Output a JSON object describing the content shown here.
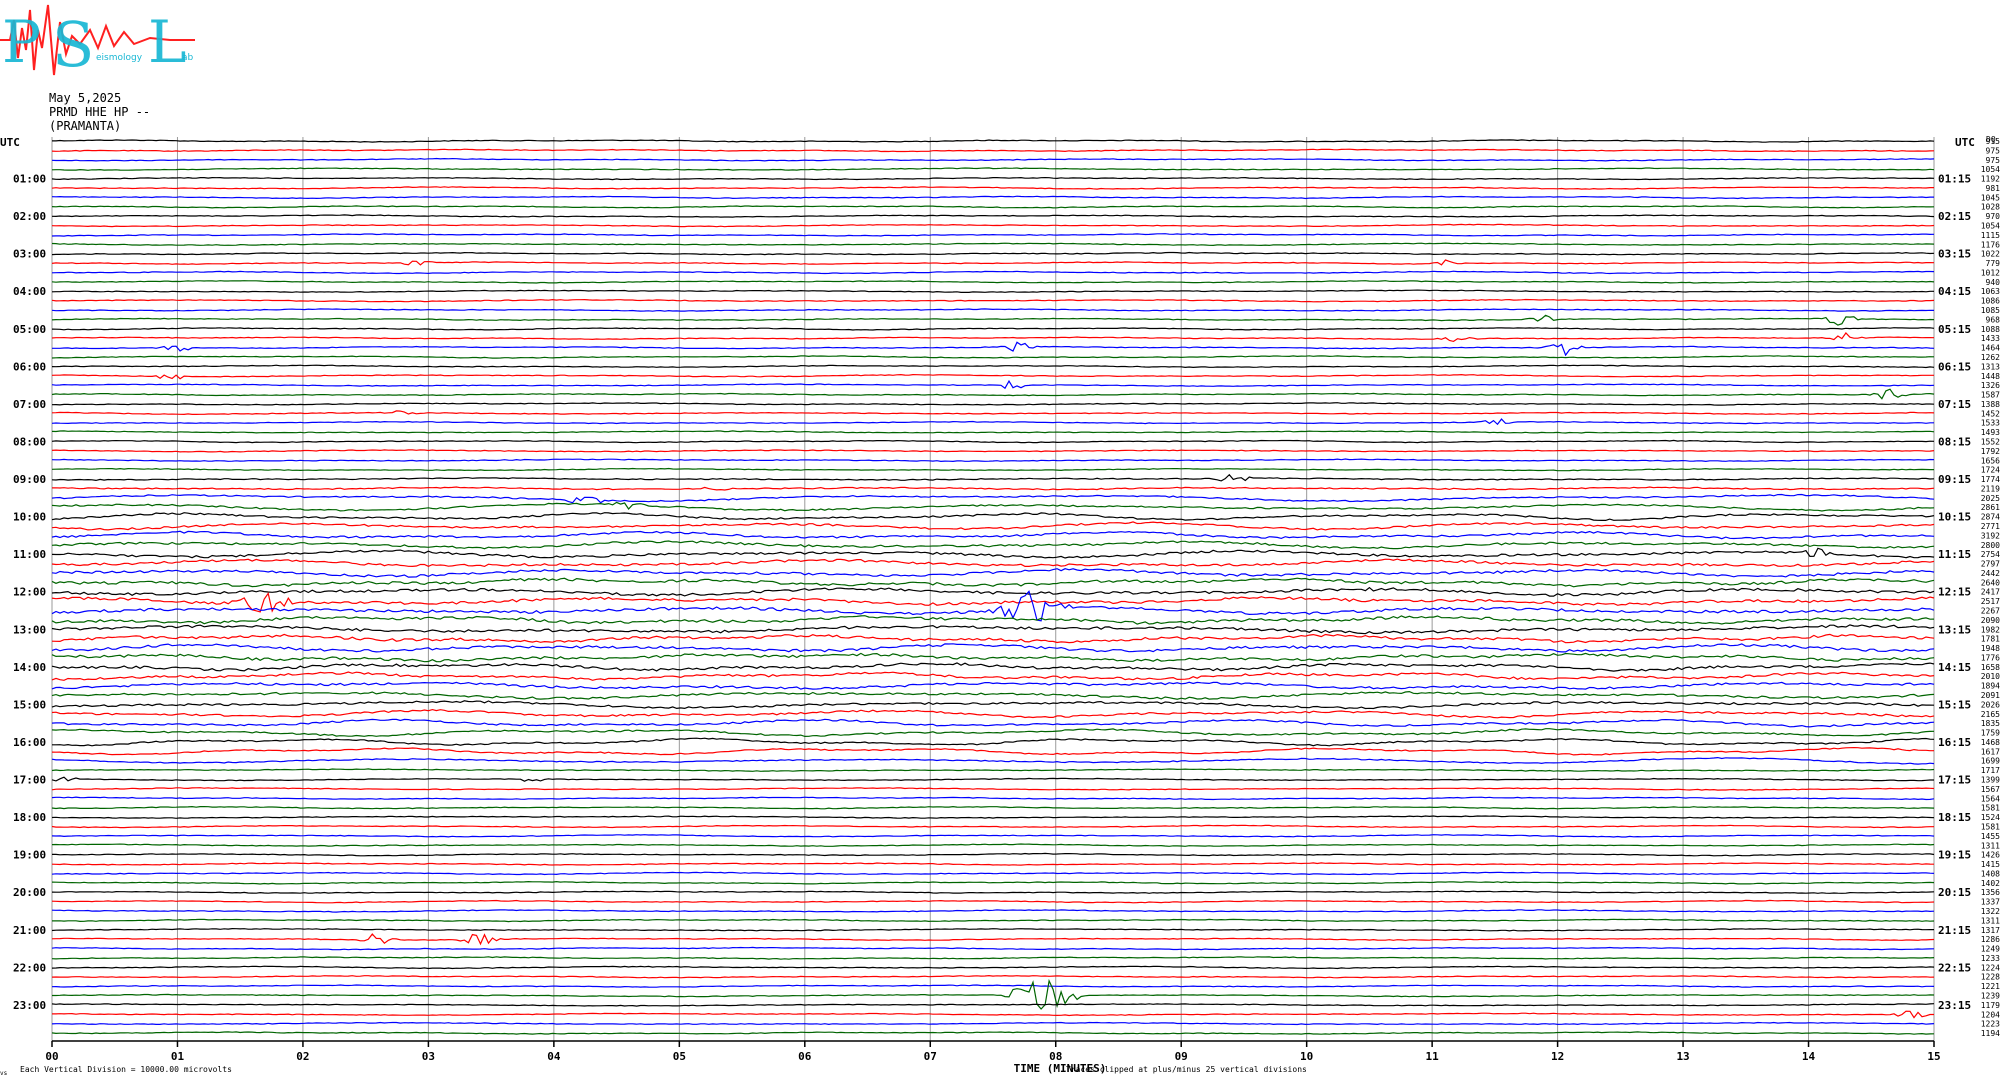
{
  "logo": {
    "letters": [
      "P",
      "S",
      "L"
    ],
    "small_words": [
      "eismology",
      "ab"
    ],
    "colors": {
      "primary": "#19b7d4",
      "accent": "#ff2020"
    }
  },
  "header": {
    "date": "May 5,2025",
    "station": "PRMD HHE HP --",
    "site": "(PRAMANTA)"
  },
  "chart_data": {
    "type": "line",
    "title": "",
    "xlabel": "TIME (MINUTES)",
    "ylabel": "",
    "xlim": [
      0,
      15
    ],
    "x_ticks": [
      "00",
      "01",
      "02",
      "03",
      "04",
      "05",
      "06",
      "07",
      "08",
      "09",
      "10",
      "11",
      "12",
      "13",
      "14",
      "15"
    ],
    "left_axis_label": "UTC",
    "right_axis_label": "UTC",
    "right_header": "DQ",
    "left_hour_labels": [
      "01:00",
      "02:00",
      "03:00",
      "04:00",
      "05:00",
      "06:00",
      "07:00",
      "08:00",
      "09:00",
      "10:00",
      "11:00",
      "12:00",
      "13:00",
      "14:00",
      "15:00",
      "16:00",
      "17:00",
      "18:00",
      "19:00",
      "20:00",
      "21:00",
      "22:00",
      "23:00"
    ],
    "right_hour_labels": [
      "01:15",
      "02:15",
      "03:15",
      "04:15",
      "05:15",
      "06:15",
      "07:15",
      "08:15",
      "09:15",
      "10:15",
      "11:15",
      "12:15",
      "13:15",
      "14:15",
      "15:15",
      "16:15",
      "17:15",
      "18:15",
      "19:15",
      "20:15",
      "21:15",
      "22:15",
      "23:15"
    ],
    "trace_colors": [
      "#000000",
      "#ff0000",
      "#0000ff",
      "#006400"
    ],
    "trace_count": 96,
    "right_values": [
      915,
      975,
      975,
      1054,
      1192,
      981,
      1045,
      1028,
      970,
      1054,
      1115,
      1176,
      1022,
      779,
      1012,
      940,
      1063,
      1086,
      1085,
      968,
      1088,
      1433,
      1464,
      1262,
      1313,
      1448,
      1326,
      1587,
      1388,
      1452,
      1533,
      1493,
      1552,
      1792,
      1656,
      1724,
      1774,
      2119,
      2025,
      2861,
      2874,
      2771,
      3192,
      2800,
      2754,
      2797,
      2442,
      2640,
      2417,
      2517,
      2267,
      2090,
      1982,
      1781,
      1948,
      1776,
      1658,
      2010,
      1894,
      2091,
      2026,
      2165,
      1835,
      1759,
      1468,
      1617,
      1699,
      1717,
      1399,
      1567,
      1564,
      1581,
      1524,
      1581,
      1455,
      1311,
      1426,
      1415,
      1408,
      1402,
      1356,
      1337,
      1322,
      1311,
      1317,
      1286,
      1249,
      1233,
      1224,
      1228,
      1221,
      1239,
      1179,
      1204,
      1223,
      1194
    ],
    "events": [
      {
        "trace": 13,
        "minute": 2.9,
        "amplitude": 3
      },
      {
        "trace": 13,
        "minute": 11.1,
        "amplitude": 4
      },
      {
        "trace": 19,
        "minute": 11.9,
        "amplitude": 4
      },
      {
        "trace": 19,
        "minute": 14.25,
        "amplitude": 7
      },
      {
        "trace": 21,
        "minute": 11.2,
        "amplitude": 3
      },
      {
        "trace": 21,
        "minute": 14.3,
        "amplitude": 6
      },
      {
        "trace": 22,
        "minute": 1.0,
        "amplitude": 4
      },
      {
        "trace": 22,
        "minute": 7.7,
        "amplitude": 5
      },
      {
        "trace": 22,
        "minute": 12.05,
        "amplitude": 9
      },
      {
        "trace": 25,
        "minute": 0.95,
        "amplitude": 4
      },
      {
        "trace": 26,
        "minute": 7.65,
        "amplitude": 5
      },
      {
        "trace": 27,
        "minute": 14.65,
        "amplitude": 7
      },
      {
        "trace": 29,
        "minute": 2.8,
        "amplitude": 5
      },
      {
        "trace": 30,
        "minute": 11.5,
        "amplitude": 4
      },
      {
        "trace": 36,
        "minute": 9.4,
        "amplitude": 6
      },
      {
        "trace": 37,
        "minute": 5.3,
        "amplitude": 3
      },
      {
        "trace": 38,
        "minute": 4.25,
        "amplitude": 5
      },
      {
        "trace": 39,
        "minute": 4.6,
        "amplitude": 4
      },
      {
        "trace": 44,
        "minute": 14.05,
        "amplitude": 7
      },
      {
        "trace": 48,
        "minute": 10.5,
        "amplitude": 3
      },
      {
        "trace": 49,
        "minute": 1.7,
        "amplitude": 12
      },
      {
        "trace": 50,
        "minute": 7.8,
        "amplitude": 18
      },
      {
        "trace": 68,
        "minute": 0.1,
        "amplitude": 3
      },
      {
        "trace": 68,
        "minute": 3.8,
        "amplitude": 3
      },
      {
        "trace": 85,
        "minute": 2.6,
        "amplitude": 9
      },
      {
        "trace": 85,
        "minute": 3.4,
        "amplitude": 7
      },
      {
        "trace": 91,
        "minute": 7.9,
        "amplitude": 20
      },
      {
        "trace": 93,
        "minute": 14.8,
        "amplitude": 6
      }
    ]
  },
  "footer": {
    "scale_note": "Each Vertical Division = 10000.00 microvolts",
    "clip_note": "Traces clipped at plus/minus 25 vertical divisions",
    "corner_mark": "vs"
  }
}
